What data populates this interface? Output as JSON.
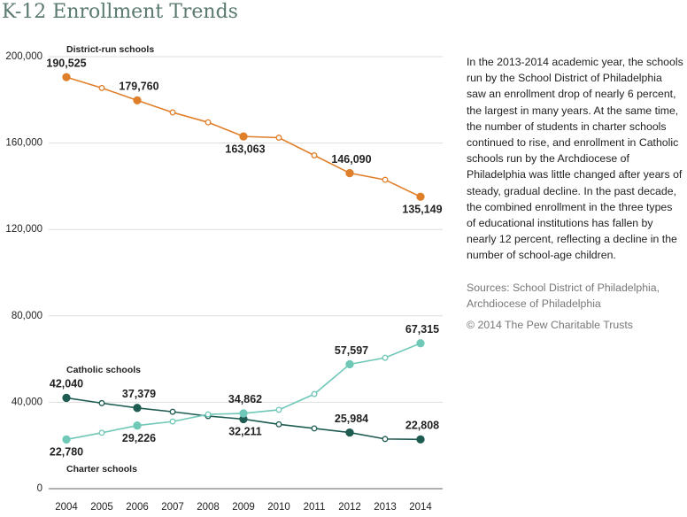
{
  "chart_data": {
    "type": "line",
    "title": "K-12 Enrollment Trends",
    "categories": [
      "2004",
      "2005",
      "2006",
      "2007",
      "2008",
      "2009",
      "2010",
      "2011",
      "2012",
      "2013",
      "2014"
    ],
    "series": [
      {
        "name": "District-run schools",
        "color": "#e07f2a",
        "values": [
          190525,
          185500,
          179760,
          174200,
          169600,
          163063,
          162500,
          154300,
          146090,
          143000,
          135149
        ],
        "value_labels": [
          "190,525",
          null,
          "179,760",
          null,
          null,
          "163,063",
          null,
          null,
          "146,090",
          null,
          "135,149"
        ]
      },
      {
        "name": "Catholic schools",
        "color": "#1e5c52",
        "values": [
          42040,
          39600,
          37379,
          35600,
          33600,
          32211,
          29800,
          27900,
          25984,
          23000,
          22808
        ],
        "value_labels": [
          "42,040",
          null,
          "37,379",
          null,
          null,
          "32,211",
          null,
          null,
          "25,984",
          null,
          "22,808"
        ]
      },
      {
        "name": "Charter schools",
        "color": "#6fc8b8",
        "values": [
          22780,
          25900,
          29226,
          31100,
          34400,
          34862,
          36500,
          43800,
          57597,
          60600,
          67315
        ],
        "value_labels": [
          "22,780",
          null,
          "29,226",
          null,
          null,
          "34,862",
          null,
          null,
          "57,597",
          null,
          "67,315"
        ]
      }
    ],
    "ylim": [
      0,
      200000
    ],
    "yticks": [
      0,
      {
        "value": 40000,
        "label": "40,000"
      },
      {
        "value": 80000,
        "label": "80,000"
      },
      {
        "value": 120000,
        "label": "120,000"
      },
      {
        "value": 160000,
        "label": "160,000"
      },
      {
        "value": 200000,
        "label": "200,000"
      }
    ],
    "grid": true
  },
  "text": {
    "description": "In the 2013-2014 academic year, the schools run by the School District of Philadelphia saw an enrollment drop of nearly 6 percent, the largest in many years. At the same time, the number of students in charter schools continued to rise, and enrollment in Catholic schools run by the Archdiocese of Philadelphia was little changed after years of steady, gradual decline. In the past decade, the combined enrollment in the three types of educational institutions has fallen by nearly 12 percent, reflecting a decline in the number of school-age children.",
    "sources": "Sources: School District of Philadelphia, Archdiocese of Philadelphia",
    "copyright": "© 2014 The Pew Charitable Trusts"
  }
}
